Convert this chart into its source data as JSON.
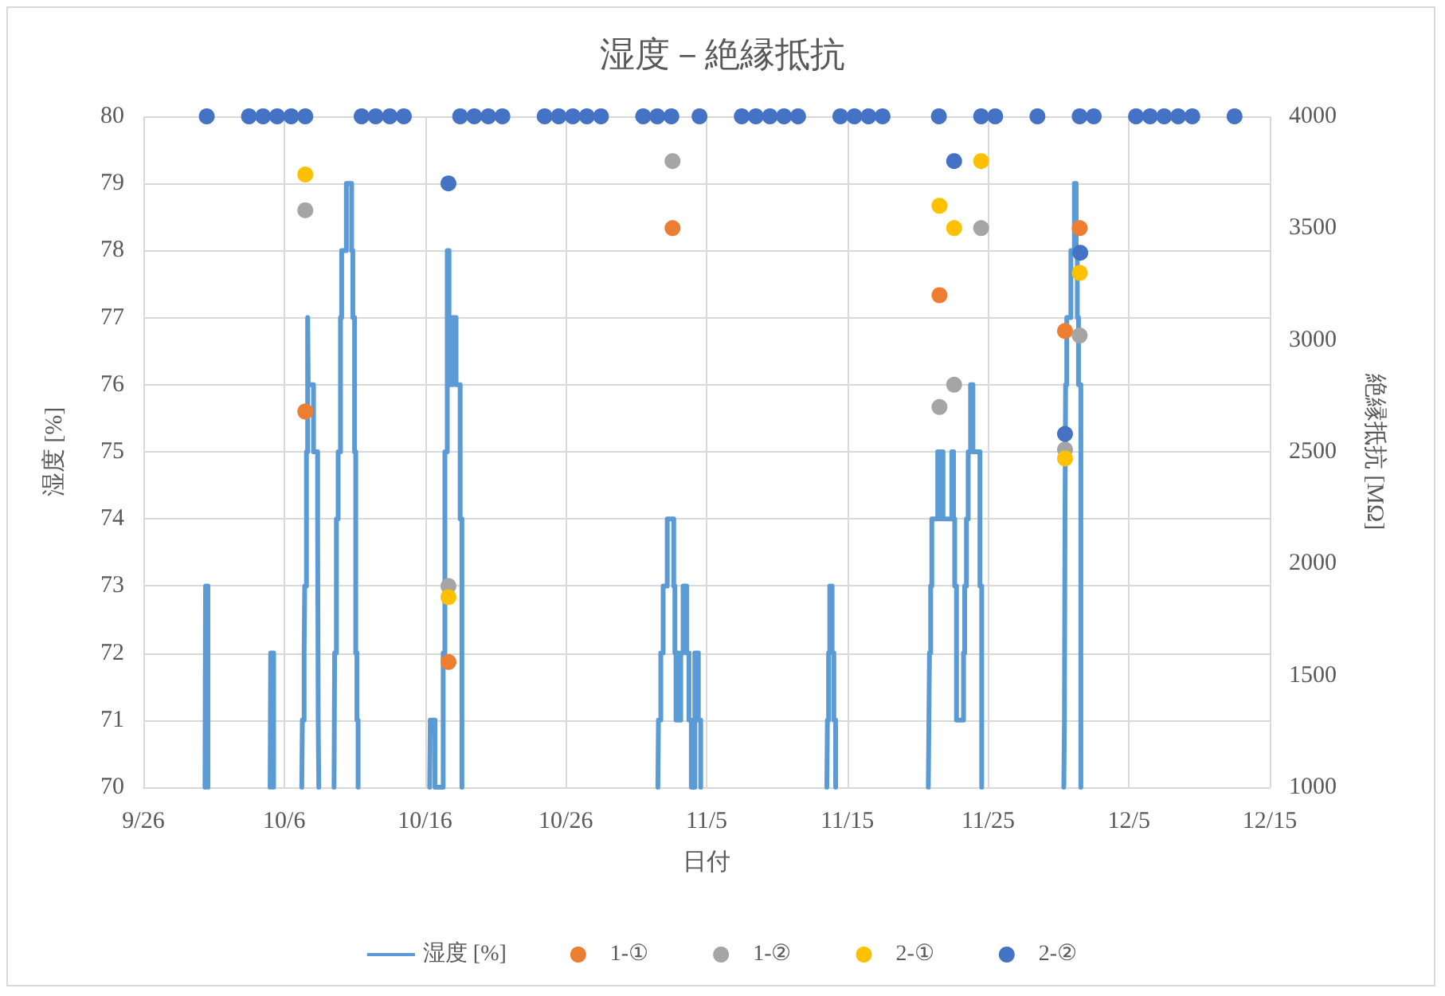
{
  "chart_data": {
    "type": "scatter",
    "title": "湿度－絶縁抵抗",
    "xlabel": "日付",
    "ylabel": "湿度 [%]",
    "y2label": "絶縁抵抗 [MΩ]",
    "xlim": [
      "--09-26",
      "--12-15"
    ],
    "xticks": [
      {
        "value": "--09-26",
        "label": "9/26"
      },
      {
        "value": "--10-06",
        "label": "10/6"
      },
      {
        "value": "--10-16",
        "label": "10/16"
      },
      {
        "value": "--10-26",
        "label": "10/26"
      },
      {
        "value": "--11-05",
        "label": "11/5"
      },
      {
        "value": "--11-15",
        "label": "11/15"
      },
      {
        "value": "--11-25",
        "label": "11/25"
      },
      {
        "value": "--12-05",
        "label": "12/5"
      },
      {
        "value": "--12-15",
        "label": "12/15"
      }
    ],
    "ylim": [
      70,
      80
    ],
    "yticks": [
      70,
      71,
      72,
      73,
      74,
      75,
      76,
      77,
      78,
      79,
      80
    ],
    "y2lim": [
      1000,
      4000
    ],
    "y2ticks": [
      1000,
      1500,
      2000,
      2500,
      3000,
      3500,
      4000
    ],
    "grid": true,
    "legend": "bottom",
    "series": [
      {
        "name": "湿度 [%]",
        "type": "step",
        "color": "#5b9bd5",
        "marker": "none",
        "line_style": "solid",
        "x": [
          "--09-30T09:00",
          "--09-30T10:00",
          "--09-30T14:00",
          "--09-30T15:00",
          "--10-05T00:00",
          "--10-05T01:00",
          "--10-05T06:00",
          "--10-05T07:00",
          "--10-07T06:00",
          "--10-07T07:00",
          "--10-07T10:00",
          "--10-07T11:00",
          "--10-07T14:00",
          "--10-07T16:00",
          "--10-07T17:00",
          "--10-08T02:00",
          "--10-08T09:00",
          "--10-08T10:00",
          "--10-08T11:00",
          "--10-08T12:00",
          "--10-09T13:00",
          "--10-09T14:00",
          "--10-09T17:00",
          "--10-09T20:00",
          "--10-10T00:00",
          "--10-10T02:00",
          "--10-10T10:00",
          "--10-10T19:00",
          "--10-10T21:00",
          "--10-11T00:00",
          "--10-11T02:00",
          "--10-11T04:00",
          "--10-11T06:00",
          "--10-11T07:00",
          "--10-16T08:00",
          "--10-16T09:00",
          "--10-16T17:00",
          "--10-17T07:00",
          "--10-17T10:00",
          "--10-17T14:00",
          "--10-17T17:00",
          "--10-17T23:00",
          "--10-18T05:00",
          "--10-18T12:00",
          "--10-18T15:00",
          "--10-18T16:00",
          "--11-01T13:00",
          "--11-01T14:00",
          "--11-01T18:00",
          "--11-01T22:00",
          "--11-02T05:00",
          "--11-02T16:00",
          "--11-02T18:00",
          "--11-02T20:00",
          "--11-02T22:00",
          "--11-03T00:00",
          "--11-03T04:00",
          "--11-03T08:00",
          "--11-03T14:00",
          "--11-03T18:00",
          "--11-03T22:00",
          "--11-04T04:00",
          "--11-04T10:00",
          "--11-04T14:00",
          "--11-04T15:00",
          "--11-13T13:00",
          "--11-13T14:00",
          "--11-13T16:00",
          "--11-13T18:00",
          "--11-13T22:00",
          "--11-14T01:00",
          "--11-14T04:00",
          "--11-14T05:00",
          "--11-20T18:00",
          "--11-20T19:00",
          "--11-20T20:00",
          "--11-20T22:00",
          "--11-21T00:00",
          "--11-21T10:00",
          "--11-21T14:00",
          "--11-21T16:00",
          "--11-21T19:00",
          "--11-22T10:00",
          "--11-22T13:00",
          "--11-22T15:00",
          "--11-22T18:00",
          "--11-23T06:00",
          "--11-23T08:00",
          "--11-23T11:00",
          "--11-23T14:00",
          "--11-23T18:00",
          "--11-23T22:00",
          "--11-24T10:00",
          "--11-24T13:00",
          "--11-24T14:00",
          "--11-30T09:00",
          "--11-30T10:00",
          "--11-30T11:00",
          "--11-30T12:00",
          "--11-30T14:00",
          "--11-30T21:00",
          "--12-01T03:00",
          "--12-01T06:00",
          "--12-01T08:00",
          "--12-01T10:00",
          "--12-01T14:00"
        ],
        "values": [
          70,
          73,
          70,
          null,
          70,
          72,
          70,
          null,
          70,
          71,
          72,
          73,
          75,
          77,
          76,
          75,
          74,
          71,
          70,
          null,
          70,
          72,
          74,
          75,
          77,
          78,
          79,
          78,
          77,
          75,
          72,
          71,
          70,
          null,
          70,
          71,
          70,
          72,
          75,
          78,
          76,
          77,
          76,
          74,
          70,
          null,
          70,
          71,
          72,
          73,
          74,
          73,
          72,
          71,
          72,
          71,
          72,
          73,
          72,
          71,
          70,
          72,
          71,
          70,
          null,
          70,
          71,
          72,
          73,
          72,
          71,
          70,
          null,
          70,
          71,
          72,
          73,
          74,
          75,
          74,
          75,
          74,
          75,
          74,
          73,
          71,
          72,
          73,
          74,
          75,
          76,
          75,
          73,
          70,
          null,
          70,
          71,
          74,
          76,
          77,
          78,
          79,
          78,
          77,
          76,
          70
        ]
      },
      {
        "name": "1-①",
        "color": "#ed7d31",
        "axis": "y2",
        "marker": "circle",
        "x": [
          "--10-07T12:00",
          "--10-17T16:00",
          "--11-02T14:00",
          "--11-21T13:00",
          "--11-30T11:00",
          "--12-01T12:00"
        ],
        "values": [
          2680,
          1560,
          3500,
          3200,
          3040,
          3500
        ]
      },
      {
        "name": "1-②",
        "color": "#a5a5a5",
        "axis": "y2",
        "marker": "circle",
        "x": [
          "--10-07T12:00",
          "--10-17T16:00",
          "--11-02T14:00",
          "--11-21T13:00",
          "--11-22T14:00",
          "--11-24T12:00",
          "--11-30T11:00",
          "--12-01T12:00"
        ],
        "values": [
          3580,
          1900,
          3800,
          2700,
          2800,
          3500,
          2510,
          3020
        ]
      },
      {
        "name": "2-①",
        "color": "#ffc000",
        "axis": "y2",
        "marker": "circle",
        "x": [
          "--10-07T12:00",
          "--10-17T16:00",
          "--11-21T13:00",
          "--11-22T14:00",
          "--11-24T12:00",
          "--11-30T11:00",
          "--12-01T12:00"
        ],
        "values": [
          3740,
          1850,
          3600,
          3500,
          3800,
          2470,
          3300
        ]
      },
      {
        "name": "2-②",
        "color": "#4472c4",
        "axis": "y2",
        "marker": "circle",
        "x": [
          "--09-30T12:00",
          "--10-03T12:00",
          "--10-04T12:00",
          "--10-05T12:00",
          "--10-06T12:00",
          "--10-07T12:00",
          "--10-11T12:00",
          "--10-12T12:00",
          "--10-13T12:00",
          "--10-14T12:00",
          "--10-18T12:00",
          "--10-19T12:00",
          "--10-20T12:00",
          "--10-21T12:00",
          "--10-24T12:00",
          "--10-25T12:00",
          "--10-26T12:00",
          "--10-27T12:00",
          "--10-28T12:00",
          "--10-31T12:00",
          "--11-01T12:00",
          "--11-02T12:00",
          "--11-04T12:00",
          "--11-07T12:00",
          "--11-08T12:00",
          "--11-09T12:00",
          "--11-10T12:00",
          "--11-11T12:00",
          "--11-14T12:00",
          "--11-15T12:00",
          "--11-16T12:00",
          "--11-17T12:00",
          "--11-21T12:00",
          "--11-24T12:00",
          "--11-25T12:00",
          "--11-28T12:00",
          "--12-01T12:00",
          "--12-02T12:00",
          "--12-05T12:00",
          "--12-06T12:00",
          "--12-07T12:00",
          "--12-08T12:00",
          "--12-09T12:00",
          "--12-12T12:00",
          "--10-17T16:00",
          "--11-22T14:00",
          "--11-30T11:00",
          "--12-01T13:00"
        ],
        "values": [
          4000,
          4000,
          4000,
          4000,
          4000,
          4000,
          4000,
          4000,
          4000,
          4000,
          4000,
          4000,
          4000,
          4000,
          4000,
          4000,
          4000,
          4000,
          4000,
          4000,
          4000,
          4000,
          4000,
          4000,
          4000,
          4000,
          4000,
          4000,
          4000,
          4000,
          4000,
          4000,
          4000,
          4000,
          4000,
          4000,
          4000,
          4000,
          4000,
          4000,
          4000,
          4000,
          4000,
          4000,
          3700,
          3800,
          2580,
          3390
        ]
      }
    ]
  }
}
